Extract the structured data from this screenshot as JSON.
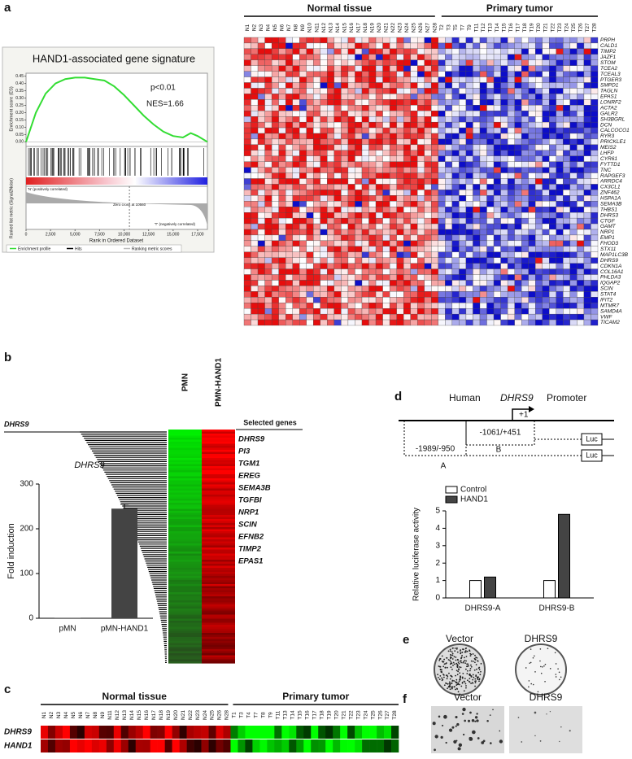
{
  "panel_labels": [
    "a",
    "b",
    "c",
    "d",
    "e",
    "f"
  ],
  "chart_data": [
    {
      "type": "line",
      "title": "HAND1-associated gene signature",
      "pvalue": "p<0.01",
      "nes": "NES=1.66",
      "ylabel": "Enrichment score (ES)",
      "ylabel2": "Ranked list metric (Signal2Noise)",
      "xlabel": "Rank in Ordered Dataset",
      "pos_label": "'N' (positively correlated)",
      "neg_label": "'T' (negatively correlated)",
      "zero_cross": "Zero cross at 10560",
      "legend": [
        "Enrichment profile",
        "Hits",
        "Ranking metric scores"
      ],
      "color": "#33dd33",
      "x": [
        0,
        1000,
        2000,
        3000,
        4000,
        5000,
        6000,
        7000,
        8000,
        9000,
        10000,
        11000,
        12000,
        13000,
        14000,
        15000,
        16000,
        16800,
        17500,
        18500
      ],
      "values": [
        0.0,
        0.2,
        0.33,
        0.4,
        0.43,
        0.44,
        0.44,
        0.43,
        0.42,
        0.38,
        0.32,
        0.25,
        0.18,
        0.12,
        0.07,
        0.04,
        0.03,
        0.06,
        0.04,
        0.0
      ],
      "xlim": [
        0,
        18500
      ],
      "xticks": [
        0,
        {
          "value": 2500,
          "label": "2,500"
        },
        {
          "value": 5000,
          "label": "5,000"
        },
        {
          "value": 7500,
          "label": "7,500"
        },
        {
          "value": 10000,
          "label": "10,000"
        },
        {
          "value": 12500,
          "label": "12,500"
        },
        {
          "value": 15000,
          "label": "15,000"
        },
        {
          "value": 17500,
          "label": "17,500"
        }
      ],
      "ylim": [
        -0.02,
        0.47
      ],
      "yticks": [
        {
          "value": 0,
          "label": "0.00"
        },
        {
          "value": 0.05,
          "label": "0.05"
        },
        {
          "value": 0.1,
          "label": "0.10"
        },
        {
          "value": 0.15,
          "label": "0.15"
        },
        {
          "value": 0.2,
          "label": "0.20"
        },
        {
          "value": 0.25,
          "label": "0.25"
        },
        {
          "value": 0.3,
          "label": "0.30"
        },
        {
          "value": 0.35,
          "label": "0.35"
        },
        {
          "value": 0.4,
          "label": "0.40"
        },
        {
          "value": 0.45,
          "label": "0.45"
        }
      ]
    },
    {
      "type": "bar",
      "title": "DHRS9",
      "ylabel": "Fold induction",
      "color": "#444444",
      "categories": [
        "pMN",
        "pMN-HAND1"
      ],
      "values": [
        1,
        245
      ],
      "errors": [
        null,
        10
      ],
      "ylim": [
        0,
        300
      ],
      "yticks": [
        0,
        100,
        200,
        300
      ]
    },
    {
      "type": "grouped-bar",
      "ylabel": "Relative luciferase activity",
      "categories": [
        "DHRS9-A",
        "DHRS9-B"
      ],
      "series": [
        {
          "name": "Control",
          "color": "#ffffff",
          "values": [
            1,
            1
          ]
        },
        {
          "name": "HAND1",
          "color": "#444444",
          "values": [
            1.2,
            4.8
          ]
        }
      ],
      "ylim": [
        0,
        5
      ],
      "yticks": [
        0,
        1,
        2,
        3,
        4,
        5
      ]
    }
  ],
  "heatmap_a": {
    "groups": [
      {
        "label": "Normal tissue",
        "color": "#33cc33"
      },
      {
        "label": "Primary tumor",
        "color": "#ee2222"
      }
    ],
    "normal_samples": [
      "N1",
      "N2",
      "N3",
      "N4",
      "N5",
      "N6",
      "N7",
      "N8",
      "N9",
      "N10",
      "N11",
      "N12",
      "N13",
      "N14",
      "N15",
      "N16",
      "N17",
      "N18",
      "N19",
      "N20",
      "N21",
      "N22",
      "N23",
      "N24",
      "N25",
      "N26",
      "N27",
      "N28"
    ],
    "tumor_samples": [
      "T2",
      "T3",
      "T5",
      "T7",
      "T9",
      "T11",
      "T12",
      "T13",
      "T14",
      "T15",
      "T16",
      "T17",
      "T18",
      "T19",
      "T20",
      "T21",
      "T22",
      "T23",
      "T24",
      "T25",
      "T26",
      "T27",
      "T28"
    ],
    "genes": [
      "PRPH",
      "CALD1",
      "TIMP2",
      "JAZF1",
      "STOM",
      "TCEA2",
      "TCEAL3",
      "PTGER3",
      "SMPD1",
      "TAGLN",
      "EPAS1",
      "LONRF2",
      "ACTA2",
      "GALR2",
      "SH3BGRL",
      "DCN",
      "CALCOCO1",
      "RYR3",
      "PRICKLE1",
      "MEIS2",
      "LHFP",
      "CYR61",
      "FYTTD1",
      "TNC",
      "RAPGEF3",
      "ARRDC4",
      "CX3CL1",
      "ZNF462",
      "HSPA1A",
      "SEMA3B",
      "THBS1",
      "DHRS3",
      "CTGF",
      "GAMT",
      "NRP1",
      "EMP1",
      "FHOD3",
      "STX11",
      "MAP1LC3B",
      "DHRS9",
      "CDKN1A",
      "COL16A1",
      "PHLDA3",
      "IQGAP2",
      "SCIN",
      "STAT4",
      "IFIT2",
      "MTMR7",
      "SAMD4A",
      "VWF",
      "TICAM2"
    ]
  },
  "panel_b": {
    "marker": "DHRS9",
    "columns": [
      "PMN",
      "PMN-HAND1"
    ],
    "selected_header": "Selected genes",
    "selected_genes": [
      "DHRS9",
      "PI3",
      "TGM1",
      "EREG",
      "SEMA3B",
      "TGFBI",
      "NRP1",
      "SCIN",
      "EFNB2",
      "TIMP2",
      "EPAS1"
    ]
  },
  "panel_c": {
    "groups": [
      {
        "label": "Normal tissue",
        "color": "#33cc33"
      },
      {
        "label": "Primary tumor",
        "color": "#ee2222"
      }
    ],
    "normal_samples": [
      "N1",
      "N2",
      "N3",
      "N4",
      "N5",
      "N6",
      "N7",
      "N8",
      "N9",
      "N11",
      "N12",
      "N13",
      "N14",
      "N15",
      "N16",
      "N17",
      "N18",
      "N19",
      "N20",
      "N21",
      "N22",
      "N23",
      "N24",
      "N25",
      "N26",
      "N28"
    ],
    "tumor_samples": [
      "T1",
      "T3",
      "T4",
      "T7",
      "T8",
      "T9",
      "T11",
      "T13",
      "T14",
      "T15",
      "T16",
      "T17",
      "T18",
      "T19",
      "T20",
      "T21",
      "T22",
      "T23",
      "T24",
      "T25",
      "T26",
      "T27",
      "T28"
    ],
    "rows": [
      "DHRS9",
      "HAND1"
    ]
  },
  "panel_d": {
    "human": "Human",
    "gene": "DHRS9",
    "promoter": "Promoter",
    "tss": "+1",
    "fragment_b": "-1061/+451",
    "label_b": "B",
    "fragment_a": "-1989/-950",
    "label_a": "A",
    "reporter": [
      "Luc",
      "Luc"
    ]
  },
  "panel_e": {
    "labels": [
      "Vector",
      "DHRS9"
    ]
  },
  "panel_f": {
    "labels": [
      "Vector",
      "DHRS9"
    ]
  }
}
